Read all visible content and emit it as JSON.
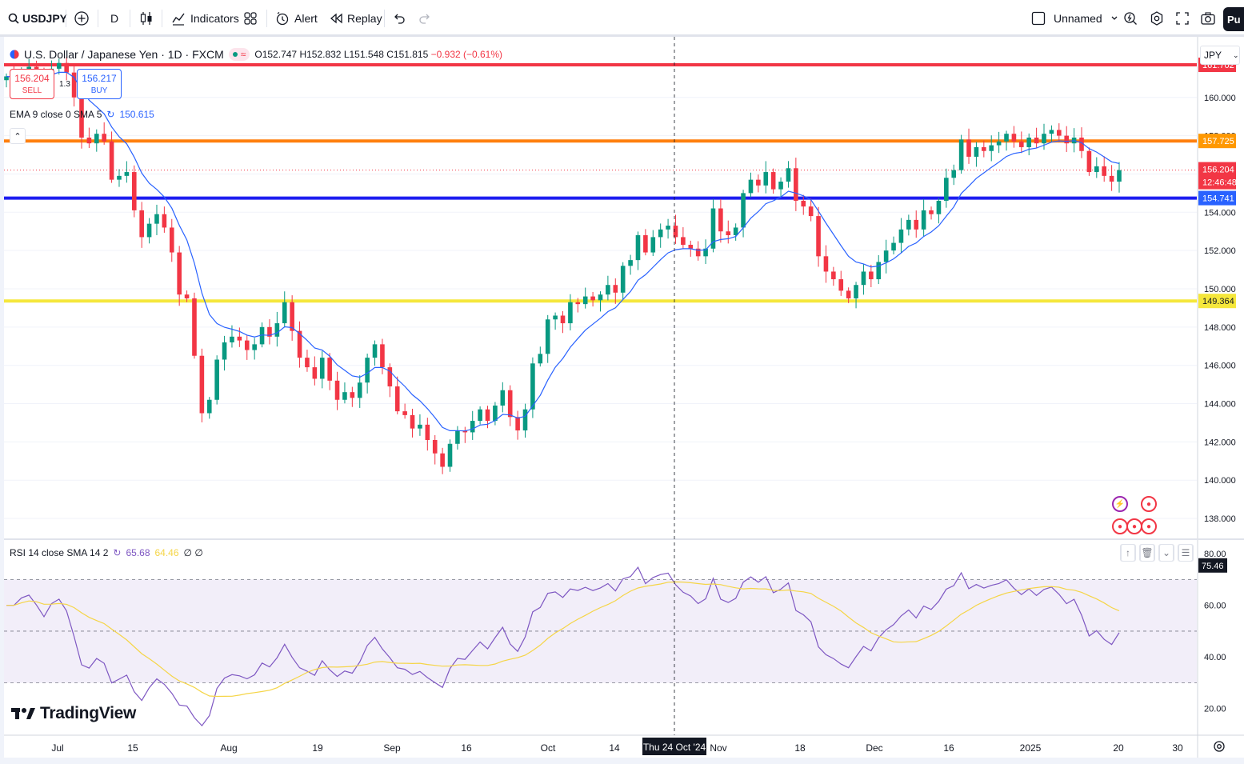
{
  "toolbar": {
    "symbol": "USDJPY",
    "interval": "D",
    "indicators_label": "Indicators",
    "alert_label": "Alert",
    "replay_label": "Replay",
    "layout_name": "Unnamed",
    "publish_label": "Pu"
  },
  "legend": {
    "title": "U.S. Dollar / Japanese Yen · 1D · FXCM",
    "open": "O152.747",
    "high": "H152.832",
    "low": "L151.548",
    "close": "C151.815",
    "change": "−0.932 (−0.61%)"
  },
  "trade": {
    "sell_price": "156.204",
    "sell_label": "SELL",
    "spread": "1.3",
    "buy_price": "156.217",
    "buy_label": "BUY"
  },
  "ema_legend": {
    "label": "EMA 9 close 0 SMA 5",
    "value": "150.615"
  },
  "rsi_legend": {
    "label": "RSI 14 close SMA 14 2",
    "value1": "65.68",
    "value2": "64.46",
    "tail": "∅ ∅"
  },
  "currency": "JPY",
  "price_axis": {
    "ticks": [
      "160.000",
      "158.000",
      "156.000",
      "154.000",
      "152.000",
      "150.000",
      "148.000",
      "146.000",
      "144.000",
      "142.000",
      "140.000",
      "138.000"
    ],
    "badges": [
      {
        "text": "161.702",
        "color": "#f23645"
      },
      {
        "text": "157.725",
        "color": "#ff9800"
      },
      {
        "text": "156.204",
        "color": "#f23645"
      },
      {
        "text": "12:46:48",
        "color": "#f23645"
      },
      {
        "text": "154.741",
        "color": "#2962ff"
      },
      {
        "text": "149.364",
        "color": "#f5e73b"
      }
    ]
  },
  "rsi_axis": {
    "ticks": [
      "80.00",
      "60.00",
      "40.00",
      "20.00"
    ],
    "badge": "75.46"
  },
  "time_axis": {
    "labels": [
      "Jul",
      "15",
      "Aug",
      "19",
      "Sep",
      "16",
      "Oct",
      "14",
      "Nov",
      "18",
      "Dec",
      "16",
      "2025",
      "20",
      "30"
    ],
    "crosshair_label": "Thu 24 Oct '24"
  },
  "horizontal_levels": [
    {
      "price": 161.702,
      "color": "#f23645"
    },
    {
      "price": 157.725,
      "color": "#ff7f0e"
    },
    {
      "price": 154.741,
      "color": "#1d1df0"
    },
    {
      "price": 149.364,
      "color": "#f5e73b"
    }
  ],
  "logo_text": "TradingView",
  "chart_data": {
    "type": "candlestick",
    "symbol": "USDJPY",
    "interval": "1D",
    "ylim": [
      137,
      163
    ],
    "rsi_ylim": [
      10,
      85
    ],
    "x_range": [
      "2024-07-01",
      "2025-01-31"
    ],
    "closes": [
      161.1,
      160.9,
      161.4,
      161.6,
      161.2,
      160.7,
      161.5,
      161.8,
      161.3,
      160.0,
      157.9,
      157.6,
      158.1,
      157.7,
      155.7,
      155.9,
      156.1,
      154.1,
      152.7,
      153.4,
      153.9,
      153.2,
      151.9,
      149.7,
      149.5,
      146.5,
      143.5,
      144.2,
      146.3,
      147.2,
      147.5,
      147.3,
      146.8,
      147.1,
      148.0,
      147.5,
      148.2,
      149.3,
      147.8,
      146.4,
      145.9,
      145.3,
      146.4,
      145.2,
      144.2,
      144.6,
      144.3,
      145.1,
      146.4,
      147.1,
      145.9,
      144.9,
      143.6,
      143.4,
      142.7,
      142.9,
      142.1,
      141.4,
      140.7,
      141.9,
      142.6,
      142.5,
      143.1,
      143.7,
      143.1,
      143.9,
      144.7,
      143.3,
      142.6,
      143.7,
      146.1,
      146.6,
      148.4,
      148.6,
      148.2,
      149.3,
      149.2,
      149.6,
      149.4,
      149.7,
      150.2,
      149.8,
      151.2,
      151.5,
      152.8,
      151.9,
      152.7,
      153.1,
      153.3,
      152.7,
      152.3,
      152.1,
      151.7,
      152.1,
      154.2,
      153.0,
      152.8,
      153.2,
      155.0,
      155.7,
      155.4,
      156.1,
      155.2,
      155.6,
      156.3,
      154.6,
      154.3,
      153.8,
      151.7,
      150.9,
      150.5,
      149.9,
      149.5,
      150.2,
      150.9,
      150.5,
      151.4,
      152.0,
      152.4,
      153.1,
      153.6,
      153.1,
      154.1,
      153.9,
      154.6,
      155.8,
      156.2,
      157.8,
      156.9,
      157.4,
      157.2,
      157.5,
      157.7,
      158.1,
      157.7,
      157.4,
      157.9,
      157.6,
      158.1,
      158.3,
      158.0,
      157.6,
      157.9,
      157.2,
      156.1,
      156.4,
      155.9,
      155.6,
      156.2
    ],
    "ema_last": 150.615,
    "rsi_last": 65.68,
    "rsi_sma_last": 64.46,
    "highlighted_date": "Thu 24 Oct '24"
  }
}
